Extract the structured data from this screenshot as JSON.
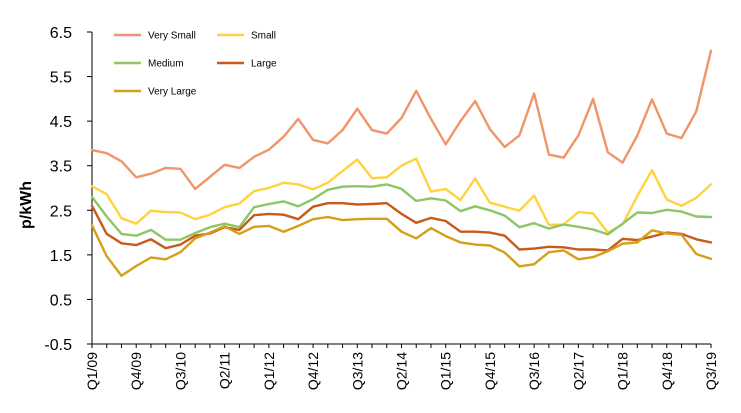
{
  "chart_data": {
    "type": "line",
    "title": "",
    "xlabel": "",
    "ylabel": "p/kWh",
    "ylim": [
      -0.5,
      6.5
    ],
    "yticks": [
      "6.5",
      "5.5",
      "4.5",
      "3.5",
      "2.5",
      "1.5",
      "0.5",
      "-0.5"
    ],
    "grid": false,
    "legend_position": "top-left",
    "x_tick_labels": [
      "Q1/09",
      "Q4/09",
      "Q3/10",
      "Q2/11",
      "Q1/12",
      "Q4/12",
      "Q3/13",
      "Q2/14",
      "Q1/15",
      "Q4/15",
      "Q3/16",
      "Q2/17",
      "Q1/18",
      "Q4/18",
      "Q3/19"
    ],
    "categories": [
      "Q1/09",
      "Q2/09",
      "Q3/09",
      "Q4/09",
      "Q1/10",
      "Q2/10",
      "Q3/10",
      "Q4/10",
      "Q1/11",
      "Q2/11",
      "Q3/11",
      "Q4/11",
      "Q1/12",
      "Q2/12",
      "Q3/12",
      "Q4/12",
      "Q1/13",
      "Q2/13",
      "Q3/13",
      "Q4/13",
      "Q1/14",
      "Q2/14",
      "Q3/14",
      "Q4/14",
      "Q1/15",
      "Q2/15",
      "Q3/15",
      "Q4/15",
      "Q1/16",
      "Q2/16",
      "Q3/16",
      "Q4/16",
      "Q1/17",
      "Q2/17",
      "Q3/17",
      "Q4/17",
      "Q1/18",
      "Q2/18",
      "Q3/18",
      "Q4/18",
      "Q1/19",
      "Q2/19",
      "Q3/19"
    ],
    "series": [
      {
        "name": "Very Small",
        "color": "#F0956A",
        "values": [
          3.85,
          3.78,
          3.6,
          3.24,
          3.32,
          3.45,
          3.43,
          2.98,
          3.25,
          3.52,
          3.45,
          3.7,
          3.86,
          4.15,
          4.55,
          4.08,
          4.0,
          4.3,
          4.78,
          4.3,
          4.22,
          4.57,
          5.18,
          4.55,
          3.98,
          4.5,
          4.95,
          4.32,
          3.92,
          4.18,
          5.12,
          3.75,
          3.68,
          4.18,
          5.0,
          3.8,
          3.57,
          4.18,
          4.99,
          4.22,
          4.12,
          4.72,
          6.08
        ]
      },
      {
        "name": "Small",
        "color": "#FFD23F",
        "values": [
          3.04,
          2.86,
          2.32,
          2.2,
          2.49,
          2.46,
          2.45,
          2.3,
          2.4,
          2.57,
          2.65,
          2.93,
          3.0,
          3.12,
          3.08,
          2.97,
          3.12,
          3.38,
          3.64,
          3.22,
          3.24,
          3.5,
          3.66,
          2.92,
          2.98,
          2.73,
          3.21,
          2.67,
          2.58,
          2.49,
          2.83,
          2.17,
          2.18,
          2.46,
          2.43,
          2.0,
          2.18,
          2.82,
          3.4,
          2.74,
          2.6,
          2.78,
          3.08
        ]
      },
      {
        "name": "Medium",
        "color": "#8CC665",
        "values": [
          2.8,
          2.36,
          1.97,
          1.93,
          2.06,
          1.84,
          1.84,
          1.99,
          2.12,
          2.2,
          2.12,
          2.57,
          2.64,
          2.7,
          2.59,
          2.75,
          2.96,
          3.03,
          3.04,
          3.03,
          3.08,
          2.98,
          2.71,
          2.77,
          2.72,
          2.48,
          2.59,
          2.5,
          2.38,
          2.12,
          2.21,
          2.09,
          2.18,
          2.13,
          2.07,
          1.96,
          2.2,
          2.45,
          2.44,
          2.51,
          2.47,
          2.36,
          2.35
        ]
      },
      {
        "name": "Large",
        "color": "#C85A1A",
        "values": [
          2.6,
          1.97,
          1.76,
          1.72,
          1.85,
          1.65,
          1.73,
          1.93,
          1.98,
          2.12,
          2.06,
          2.39,
          2.42,
          2.4,
          2.3,
          2.58,
          2.66,
          2.66,
          2.63,
          2.64,
          2.66,
          2.42,
          2.22,
          2.33,
          2.26,
          2.02,
          2.02,
          2.0,
          1.93,
          1.62,
          1.64,
          1.68,
          1.67,
          1.62,
          1.62,
          1.6,
          1.86,
          1.83,
          1.91,
          2.0,
          1.97,
          1.85,
          1.78
        ]
      },
      {
        "name": "Very Large",
        "color": "#D4A017",
        "values": [
          2.16,
          1.47,
          1.03,
          1.25,
          1.44,
          1.4,
          1.56,
          1.87,
          2.0,
          2.14,
          1.97,
          2.13,
          2.15,
          2.02,
          2.15,
          2.3,
          2.35,
          2.28,
          2.3,
          2.31,
          2.31,
          2.02,
          1.87,
          2.1,
          1.92,
          1.78,
          1.73,
          1.71,
          1.55,
          1.24,
          1.29,
          1.56,
          1.6,
          1.4,
          1.45,
          1.58,
          1.75,
          1.78,
          2.05,
          1.98,
          1.95,
          1.52,
          1.41
        ]
      }
    ]
  }
}
